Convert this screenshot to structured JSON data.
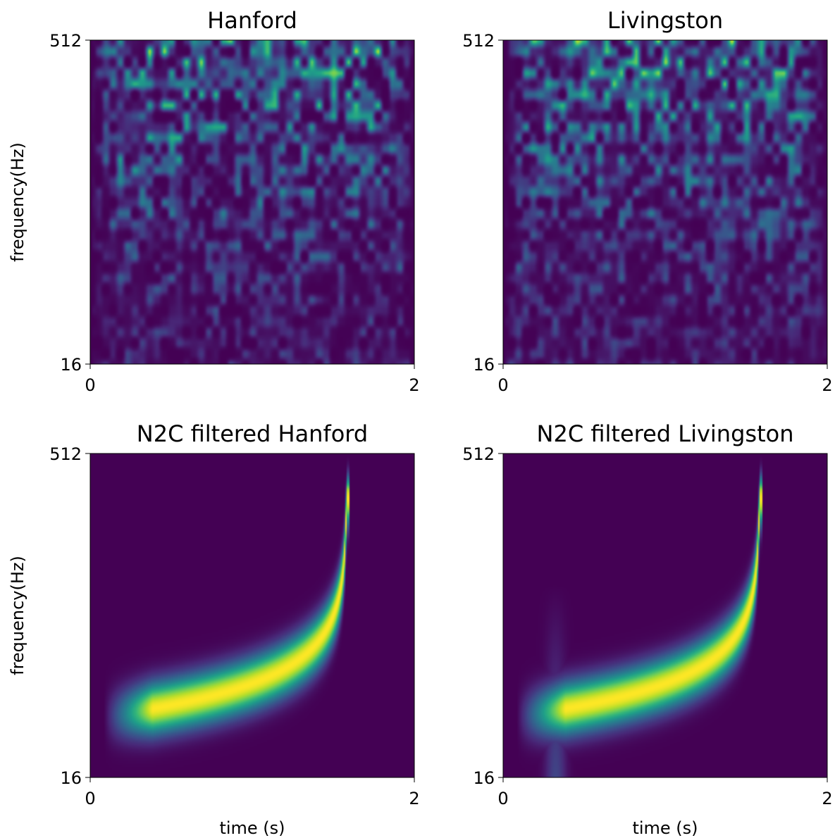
{
  "chart_data": [
    {
      "type": "heatmap",
      "title": "Hanford",
      "xlabel": "",
      "ylabel": "frequency(Hz)",
      "x_ticks": [
        "0",
        "2"
      ],
      "y_ticks": [
        "16",
        "512"
      ],
      "xlim": [
        0,
        2
      ],
      "ylim": [
        16,
        512
      ],
      "colormap": "viridis",
      "content": "noise"
    },
    {
      "type": "heatmap",
      "title": "Livingston",
      "xlabel": "",
      "ylabel": "",
      "x_ticks": [
        "0",
        "2"
      ],
      "y_ticks": [
        "16",
        "512"
      ],
      "xlim": [
        0,
        2
      ],
      "ylim": [
        16,
        512
      ],
      "colormap": "viridis",
      "content": "noise"
    },
    {
      "type": "heatmap",
      "title": "N2C filtered Hanford",
      "xlabel": "time (s)",
      "ylabel": "frequency(Hz)",
      "x_ticks": [
        "0",
        "2"
      ],
      "y_ticks": [
        "16",
        "512"
      ],
      "xlim": [
        0,
        2
      ],
      "ylim": [
        16,
        512
      ],
      "colormap": "viridis",
      "content": "chirp",
      "merger_time": 1.58
    },
    {
      "type": "heatmap",
      "title": "N2C filtered Livingston",
      "xlabel": "time (s)",
      "ylabel": "",
      "x_ticks": [
        "0",
        "2"
      ],
      "y_ticks": [
        "16",
        "512"
      ],
      "xlim": [
        0,
        2
      ],
      "ylim": [
        16,
        512
      ],
      "colormap": "viridis",
      "content": "chirp",
      "merger_time": 1.58
    }
  ],
  "colors": {
    "background_low": "#440154",
    "mid": "#21918c",
    "high": "#fde725"
  }
}
